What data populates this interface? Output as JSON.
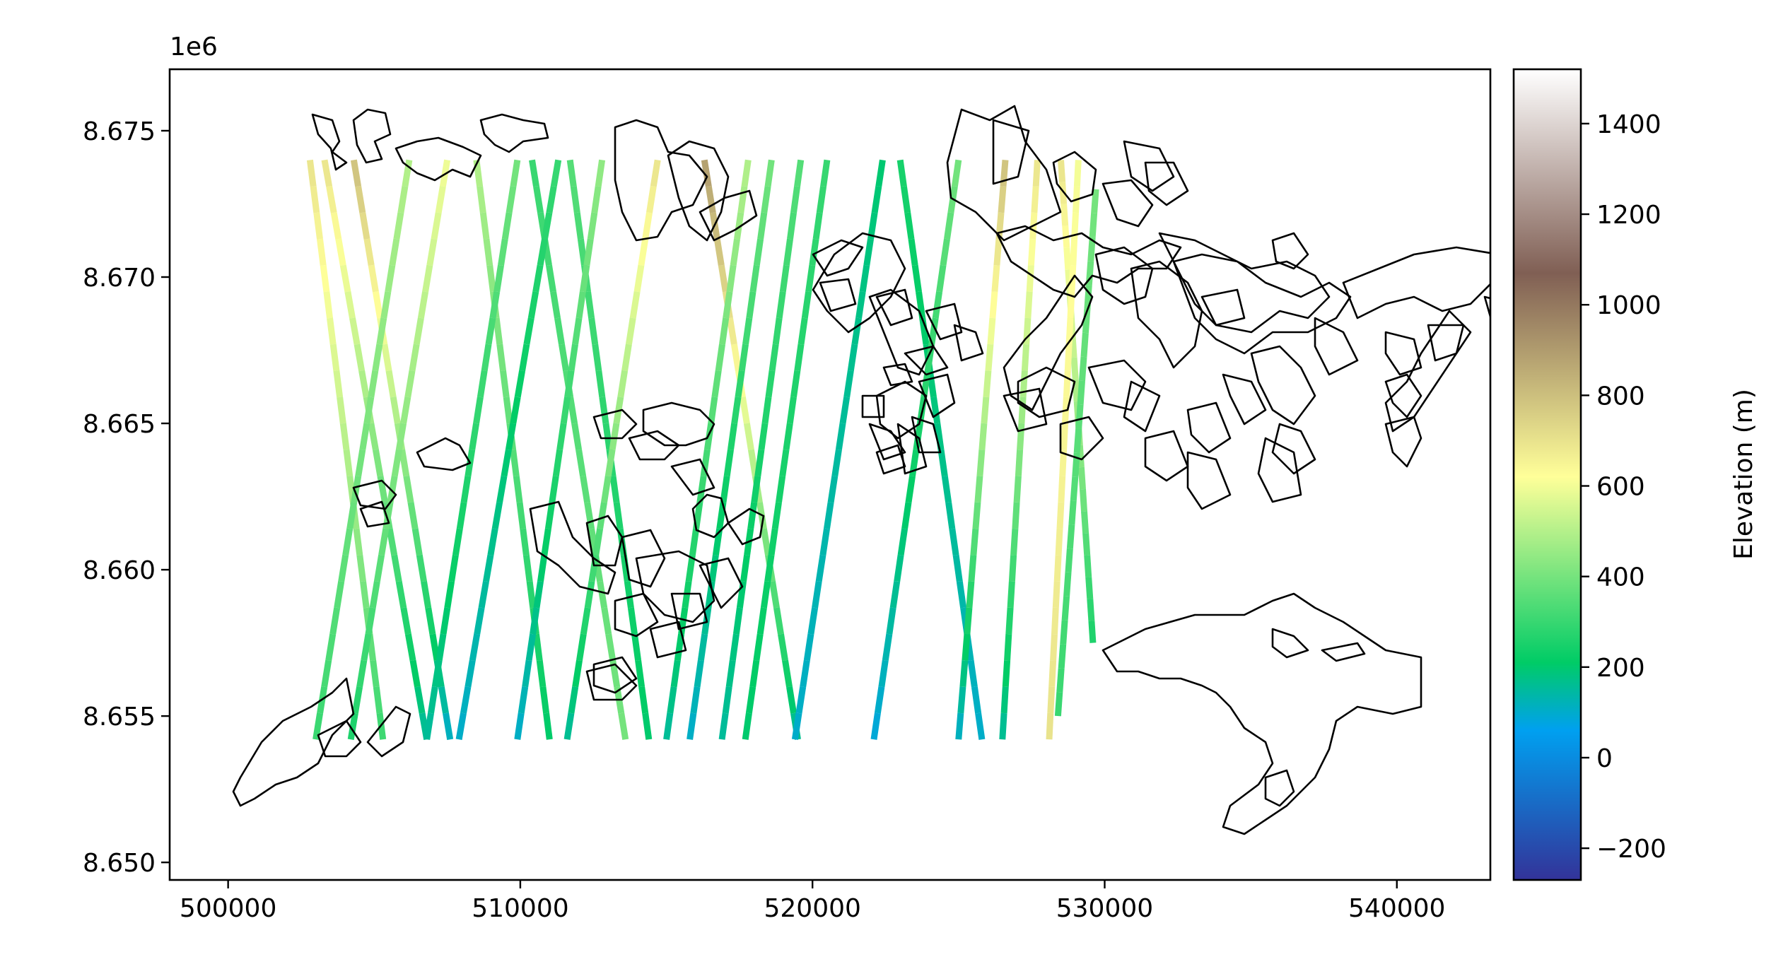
{
  "chart_data": {
    "type": "scatter",
    "title": "",
    "xlabel": "",
    "ylabel": "",
    "y_offset_label": "1e6",
    "xlim": [
      498000,
      543200
    ],
    "ylim": [
      8649400,
      8677100
    ],
    "x_ticks": [
      500000,
      510000,
      520000,
      530000,
      540000
    ],
    "x_tick_labels": [
      "500000",
      "510000",
      "520000",
      "530000",
      "540000"
    ],
    "y_ticks": [
      8650000,
      8655000,
      8660000,
      8665000,
      8670000,
      8675000
    ],
    "y_tick_labels": [
      "8.650",
      "8.655",
      "8.660",
      "8.665",
      "8.670",
      "8.675"
    ],
    "grid": false,
    "colorbar": {
      "label": "Elevation (m)",
      "range": [
        -270,
        1520
      ],
      "ticks": [
        -200,
        0,
        200,
        400,
        600,
        800,
        1000,
        1200,
        1400
      ],
      "tick_labels": [
        "−200",
        "0",
        "200",
        "400",
        "600",
        "800",
        "1000",
        "1200",
        "1400"
      ],
      "colormap": "terrain",
      "stops": [
        {
          "v": -270,
          "c": "#333399"
        },
        {
          "v": 60,
          "c": "#00a0f0"
        },
        {
          "v": 210,
          "c": "#00cc66"
        },
        {
          "v": 620,
          "c": "#ffff99"
        },
        {
          "v": 1070,
          "c": "#805f54"
        },
        {
          "v": 1520,
          "c": "#ffffff"
        }
      ]
    },
    "tracks": [
      {
        "x1": 502800,
        "y1": 8674000,
        "x2": 505300,
        "y2": 8654200,
        "elev_start": 700,
        "elev_end": 300
      },
      {
        "x1": 503300,
        "y1": 8674000,
        "x2": 506800,
        "y2": 8654200,
        "elev_start": 700,
        "elev_end": 150
      },
      {
        "x1": 504300,
        "y1": 8674000,
        "x2": 507600,
        "y2": 8654200,
        "elev_start": 800,
        "elev_end": 100
      },
      {
        "x1": 506200,
        "y1": 8674000,
        "x2": 503000,
        "y2": 8654200,
        "elev_start": 500,
        "elev_end": 300
      },
      {
        "x1": 507500,
        "y1": 8674000,
        "x2": 504200,
        "y2": 8654200,
        "elev_start": 600,
        "elev_end": 250
      },
      {
        "x1": 508500,
        "y1": 8674000,
        "x2": 511000,
        "y2": 8654200,
        "elev_start": 500,
        "elev_end": 200
      },
      {
        "x1": 509900,
        "y1": 8674000,
        "x2": 506800,
        "y2": 8654200,
        "elev_start": 400,
        "elev_end": 150
      },
      {
        "x1": 510400,
        "y1": 8674000,
        "x2": 513600,
        "y2": 8654200,
        "elev_start": 300,
        "elev_end": 400
      },
      {
        "x1": 511300,
        "y1": 8674000,
        "x2": 507900,
        "y2": 8654200,
        "elev_start": 300,
        "elev_end": 100
      },
      {
        "x1": 511700,
        "y1": 8674000,
        "x2": 514400,
        "y2": 8654200,
        "elev_start": 350,
        "elev_end": 200
      },
      {
        "x1": 512800,
        "y1": 8674000,
        "x2": 509900,
        "y2": 8654200,
        "elev_start": 450,
        "elev_end": 100
      },
      {
        "x1": 514700,
        "y1": 8674000,
        "x2": 511600,
        "y2": 8654200,
        "elev_start": 700,
        "elev_end": 150
      },
      {
        "x1": 516300,
        "y1": 8674000,
        "x2": 519500,
        "y2": 8654200,
        "elev_start": 900,
        "elev_end": 150
      },
      {
        "x1": 517800,
        "y1": 8674000,
        "x2": 515000,
        "y2": 8654200,
        "elev_start": 500,
        "elev_end": 150
      },
      {
        "x1": 518600,
        "y1": 8674000,
        "x2": 515800,
        "y2": 8654200,
        "elev_start": 400,
        "elev_end": 100
      },
      {
        "x1": 519600,
        "y1": 8674000,
        "x2": 516900,
        "y2": 8654200,
        "elev_start": 350,
        "elev_end": 150
      },
      {
        "x1": 520500,
        "y1": 8674000,
        "x2": 517700,
        "y2": 8654200,
        "elev_start": 300,
        "elev_end": 200
      },
      {
        "x1": 522400,
        "y1": 8674000,
        "x2": 519400,
        "y2": 8654200,
        "elev_start": 200,
        "elev_end": 100
      },
      {
        "x1": 523000,
        "y1": 8674000,
        "x2": 525800,
        "y2": 8654200,
        "elev_start": 250,
        "elev_end": 100
      },
      {
        "x1": 525000,
        "y1": 8674000,
        "x2": 522100,
        "y2": 8654200,
        "elev_start": 400,
        "elev_end": 80
      },
      {
        "x1": 526600,
        "y1": 8674000,
        "x2": 525000,
        "y2": 8654200,
        "elev_start": 800,
        "elev_end": 100
      },
      {
        "x1": 527700,
        "y1": 8674000,
        "x2": 526500,
        "y2": 8654200,
        "elev_start": 700,
        "elev_end": 150
      },
      {
        "x1": 528500,
        "y1": 8674000,
        "x2": 529600,
        "y2": 8657500,
        "elev_start": 700,
        "elev_end": 250
      },
      {
        "x1": 529100,
        "y1": 8674000,
        "x2": 528100,
        "y2": 8654200,
        "elev_start": 600,
        "elev_end": 700
      },
      {
        "x1": 529700,
        "y1": 8673000,
        "x2": 528400,
        "y2": 8655000,
        "elev_start": 400,
        "elev_end": 300
      }
    ]
  }
}
